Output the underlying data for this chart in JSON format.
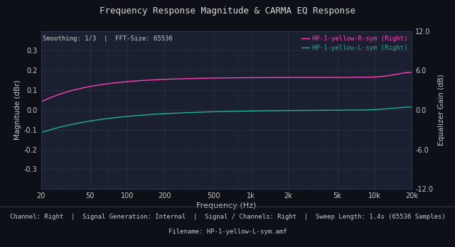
{
  "title": "Frequency Response Magnitude & CARMA EQ Response",
  "xlabel": "Frequency (Hz)",
  "ylabel_left": "Magnitude (dBr)",
  "ylabel_right": "Equalizer Gain (dB)",
  "bg_color": "#0d1117",
  "plot_bg_color": "#1a2030",
  "grid_color": "#2a3448",
  "text_color": "#c8c8c8",
  "title_color": "#d8d8d8",
  "line1_color": "#ff40bb",
  "line2_color": "#20b0a0",
  "line1_label": "HP-1-yellow-R-sym (Right)",
  "line2_label": "HP-1-yellow-L-sym (Right)",
  "smoothing_text": "Smoothing: 1/3  |  FFT-Size: 65536",
  "footer_text1": "Channel: Right  |  Signal Generation: Internal  |  Signal / Channels: Right  |  Sweep Length: 1.4s (65536 Samples)",
  "footer_text2": "Filename: HP-1-yellow-L-sym.amf",
  "footer_sep_color": "#2a3448",
  "ylim_left": [
    -0.4,
    0.4
  ],
  "ylim_right": [
    -12.0,
    12.0
  ],
  "freq_ticks": [
    20,
    50,
    100,
    200,
    500,
    1000,
    2000,
    5000,
    10000,
    20000
  ],
  "freq_tick_labels": [
    "20",
    "50",
    "100",
    "200",
    "500",
    "1k",
    "2k",
    "5k",
    "10k",
    "20k"
  ],
  "yticks_left": [
    -0.3,
    -0.2,
    -0.1,
    0.0,
    0.1,
    0.2,
    0.3
  ],
  "yticks_right": [
    -12.0,
    -6.0,
    0.0,
    6.0,
    12.0
  ],
  "ytick_right_labels": [
    "-12.0",
    "-6.0",
    "0.0",
    "6.0",
    "12.0"
  ]
}
